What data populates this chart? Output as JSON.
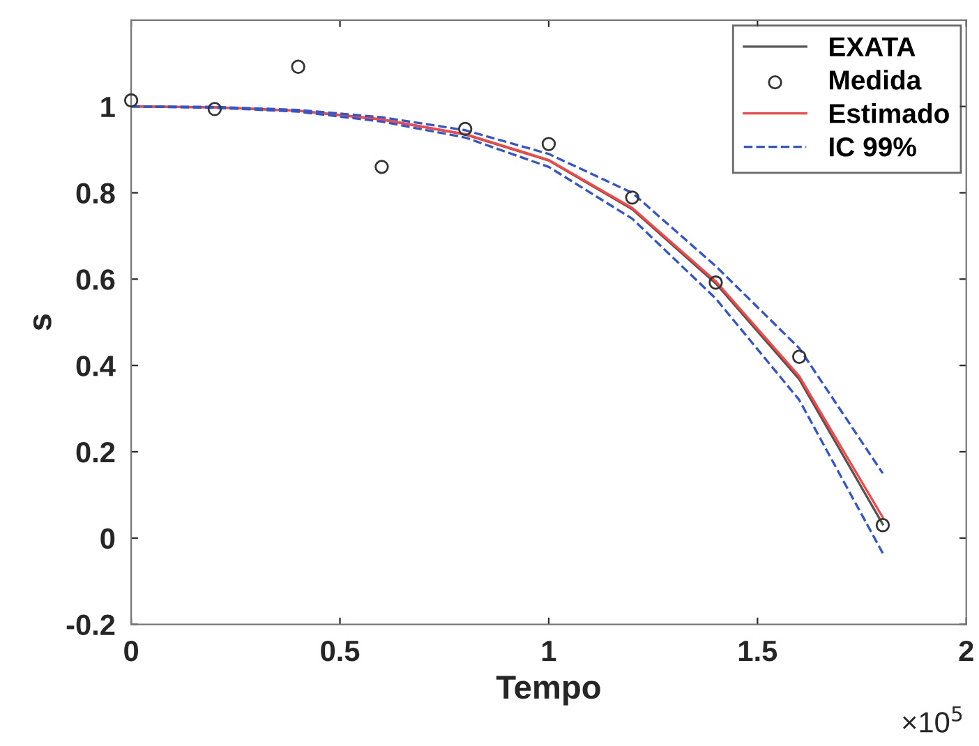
{
  "chart_data": {
    "type": "line",
    "xlabel": "Tempo",
    "ylabel": "s",
    "annotations": [
      "×10$^{5}$"
    ],
    "x": [
      0,
      0.2,
      0.4,
      0.6,
      0.8,
      1,
      1.2,
      1.4,
      1.6,
      1.8
    ],
    "xlim": [
      0,
      2
    ],
    "xticks": [
      0,
      0.5,
      1,
      1.5,
      2
    ],
    "ylim": [
      -0.2,
      1.2
    ],
    "yticks": [
      -0.2,
      0,
      0.2,
      0.4,
      0.6,
      0.8,
      1
    ],
    "grid": false,
    "legend": "top right",
    "series": [
      {
        "name": "EXATA",
        "color": "#555555",
        "line_style": "solid",
        "marker": "none",
        "values": [
          1,
          0.998,
          0.99,
          0.97,
          0.935,
          0.875,
          0.762,
          0.59,
          0.368,
          0.032
        ]
      },
      {
        "name": "Medida",
        "type": "scatter",
        "color": "#333333",
        "marker": "circle",
        "values": [
          1.014,
          0.994,
          1.092,
          0.86,
          0.948,
          0.913,
          0.789,
          0.592,
          0.42,
          0.03
        ]
      },
      {
        "name": "Estimado",
        "color": "#ff4444",
        "line_style": "solid",
        "marker": "none",
        "values": [
          1,
          0.998,
          0.99,
          0.97,
          0.936,
          0.876,
          0.765,
          0.595,
          0.375,
          0.048
        ]
      },
      {
        "name": "IC 99%",
        "color": "#3355cc",
        "line_style": "dashed",
        "marker": "none",
        "values": [
          1,
          0.999,
          0.992,
          0.975,
          0.945,
          0.89,
          0.8,
          0.63,
          0.44,
          0.15
        ]
      },
      {
        "color": "#3355cc",
        "line_style": "dashed",
        "marker": "none",
        "values": [
          1,
          0.997,
          0.988,
          0.965,
          0.928,
          0.86,
          0.74,
          0.555,
          0.32,
          -0.035
        ]
      }
    ]
  }
}
